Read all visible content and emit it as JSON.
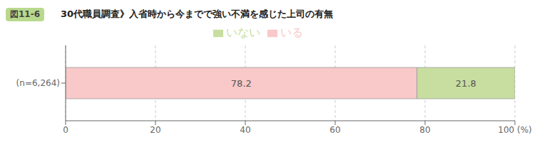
{
  "chart_data": {
    "type": "bar",
    "orientation": "horizontal",
    "stacked": true,
    "title": "　30代職員調査》入省時から今までで強い不満を感じた上司の有無",
    "annotations": [
      "図11-6"
    ],
    "categories": [
      "(n=6,264)"
    ],
    "series": [
      {
        "name": "いる",
        "color": "#f9c8c8",
        "values": [
          78.2
        ],
        "value_labels": [
          "78.2"
        ]
      },
      {
        "name": "いない",
        "color": "#c8dea0",
        "values": [
          21.8
        ],
        "value_labels": [
          "21.8"
        ]
      }
    ],
    "xlim": [
      0,
      100
    ],
    "xticks": [
      0,
      20,
      40,
      60,
      80,
      {
        "value": 100,
        "label": "100 (%)"
      }
    ],
    "grid": true,
    "legend": "top",
    "data_labels": true
  }
}
